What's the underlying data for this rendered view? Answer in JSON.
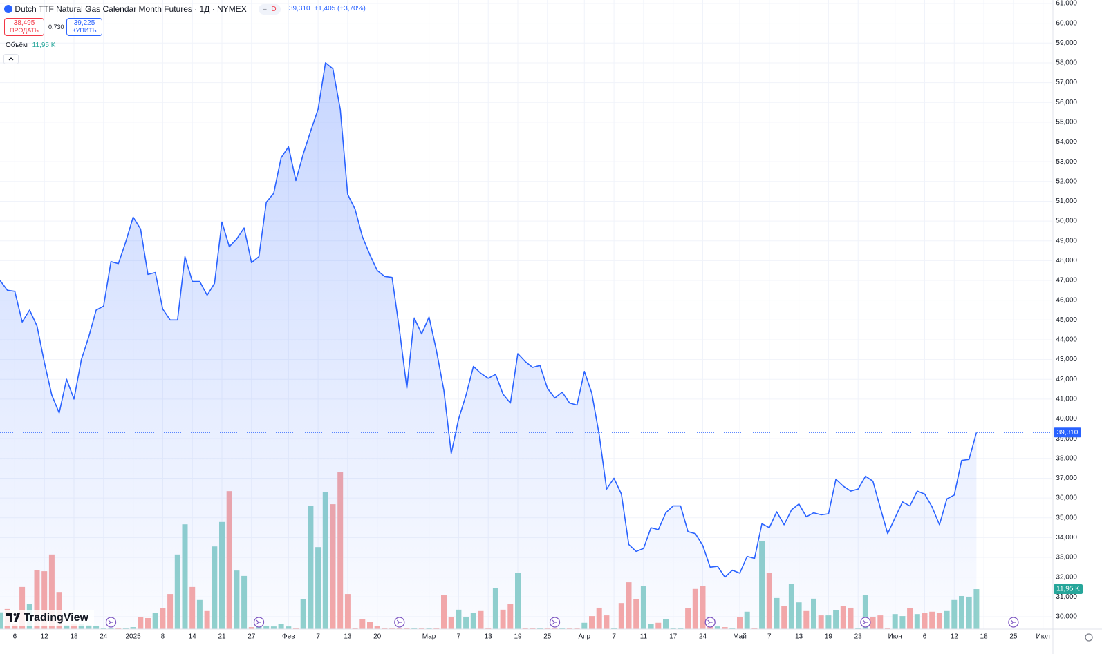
{
  "chart_data": {
    "type": "area",
    "title": "Dutch TTF Natural Gas Calendar Month Futures · 1Д · NYMEX",
    "badge": "D",
    "price_label": "39,310",
    "change_label": "+1,405 (+3,70%)",
    "sell": {
      "price": "38,495",
      "label": "ПРОДАТЬ"
    },
    "spread": "0.730",
    "buy": {
      "price": "39,225",
      "label": "КУПИТЬ"
    },
    "brand": "TradingView",
    "color": "#2962ff",
    "grid": true,
    "categories": [
      null,
      null,
      "6",
      null,
      null,
      null,
      "12",
      null,
      null,
      null,
      "18",
      null,
      null,
      null,
      "24",
      null,
      null,
      null,
      "2025",
      null,
      null,
      null,
      "8",
      null,
      null,
      null,
      "14",
      null,
      null,
      null,
      "21",
      null,
      null,
      null,
      "27",
      null,
      null,
      null,
      null,
      "Фев",
      null,
      null,
      null,
      "7",
      null,
      null,
      null,
      "13",
      null,
      null,
      null,
      "20",
      null,
      null,
      null,
      null,
      null,
      null,
      "Мар",
      null,
      null,
      null,
      "7",
      null,
      null,
      null,
      "13",
      null,
      null,
      null,
      "19",
      null,
      null,
      null,
      "25",
      null,
      null,
      null,
      null,
      "Апр",
      null,
      null,
      null,
      "7",
      null,
      null,
      null,
      "11",
      null,
      null,
      null,
      "17",
      null,
      null,
      null,
      "24",
      null,
      null,
      null,
      null,
      "Май",
      null,
      null,
      null,
      "7",
      null,
      null,
      null,
      "13",
      null,
      null,
      null,
      "19",
      null,
      null,
      null,
      "23",
      null,
      null,
      null,
      null,
      "Июн",
      null,
      null,
      null,
      "6",
      null,
      null,
      null,
      "12",
      null,
      null,
      null,
      "18",
      null,
      null,
      null,
      "25",
      null,
      null,
      null,
      "Июл"
    ],
    "values": [
      47000,
      46500,
      46450,
      44900,
      45500,
      44700,
      42850,
      41200,
      40300,
      42000,
      41000,
      43000,
      44150,
      45500,
      45700,
      47950,
      47850,
      48950,
      50200,
      49600,
      47300,
      47400,
      45550,
      45000,
      45000,
      48200,
      46950,
      46950,
      46250,
      46850,
      49950,
      48700,
      49100,
      49650,
      47900,
      48200,
      50950,
      51400,
      53200,
      53750,
      52050,
      53400,
      54550,
      55650,
      58000,
      57700,
      55650,
      51350,
      50600,
      49200,
      48300,
      47500,
      47200,
      47150,
      44500,
      41550,
      45100,
      44300,
      45150,
      43450,
      41450,
      38250,
      40000,
      41200,
      42650,
      42300,
      42050,
      42250,
      41250,
      40800,
      43300,
      42900,
      42600,
      42700,
      41550,
      41050,
      41350,
      40800,
      40700,
      42400,
      41300,
      39200,
      36450,
      37000,
      36200,
      33650,
      33300,
      33450,
      34500,
      34400,
      35250,
      35600,
      35600,
      34300,
      34200,
      33600,
      32500,
      32550,
      32000,
      32350,
      32200,
      33050,
      32950,
      34700,
      34500,
      35300,
      34650,
      35400,
      35700,
      35050,
      35250,
      35150,
      35200,
      36950,
      36600,
      36350,
      36450,
      37100,
      36850,
      35500,
      34200,
      35000,
      35800,
      35600,
      36350,
      36200,
      35550,
      34650,
      35950,
      36150,
      37900,
      37950,
      39310,
      null,
      null,
      null,
      null,
      null,
      null,
      null,
      null,
      null
    ],
    "volume": {
      "name": "Объём",
      "label": "11,95 K",
      "color_up": "#92d2cc",
      "color_down": "#f7a9a7",
      "values": [
        5,
        6,
        1.5,
        12.6,
        7.6,
        17.7,
        17.3,
        22.3,
        11.1,
        1.2,
        1.6,
        1.6,
        1.2,
        1,
        0.4,
        0.4,
        0.4,
        0.4,
        0.6,
        3.7,
        3.3,
        4.9,
        6.2,
        10.5,
        22.3,
        31.3,
        12.6,
        8.7,
        5.4,
        24.7,
        32,
        41.2,
        17.5,
        15.9,
        0.6,
        1,
        1,
        0.8,
        1.6,
        0.8,
        0.4,
        8.9,
        36.9,
        24.5,
        41,
        37.3,
        46.8,
        10.5,
        0.4,
        2.9,
        2.1,
        1,
        0.4,
        0.2,
        0.2,
        0.4,
        0.4,
        0.2,
        0.4,
        0.4,
        10.1,
        3.7,
        5.8,
        3.7,
        4.9,
        5.4,
        0.4,
        12.2,
        5.8,
        7.6,
        16.9,
        0.4,
        0.4,
        0.4,
        0.2,
        0.4,
        0.2,
        0.2,
        0.2,
        1.9,
        3.9,
        6.4,
        4.1,
        0.4,
        7.8,
        14,
        8.9,
        12.8,
        1.6,
        1.9,
        2.9,
        0.4,
        0.4,
        6.2,
        12,
        12.8,
        2.9,
        0.8,
        0.6,
        0.4,
        3.7,
        5.2,
        0.4,
        26.2,
        16.7,
        9.3,
        7,
        13.4,
        8,
        5.4,
        9.1,
        4.1,
        4.1,
        5.6,
        7,
        6.4,
        0.4,
        10.1,
        3.7,
        4.1,
        0.4,
        4.5,
        3.9,
        6.2,
        4.5,
        4.9,
        5.2,
        4.9,
        5.4,
        8.7,
        9.9,
        9.7,
        11.95,
        null,
        null,
        null,
        null,
        null,
        null,
        null,
        null,
        null
      ]
    },
    "ylim": [
      29370,
      61175
    ],
    "yticks": [
      {
        "value": 30000,
        "label": "30,000"
      },
      {
        "value": 31000,
        "label": "31,000"
      },
      {
        "value": 32000,
        "label": "32,000"
      },
      {
        "value": 33000,
        "label": "33,000"
      },
      {
        "value": 34000,
        "label": "34,000"
      },
      {
        "value": 35000,
        "label": "35,000"
      },
      {
        "value": 36000,
        "label": "36,000"
      },
      {
        "value": 37000,
        "label": "37,000"
      },
      {
        "value": 38000,
        "label": "38,000"
      },
      {
        "value": 39000,
        "label": "39,000"
      },
      {
        "value": 40000,
        "label": "40,000"
      },
      {
        "value": 41000,
        "label": "41,000"
      },
      {
        "value": 42000,
        "label": "42,000"
      },
      {
        "value": 43000,
        "label": "43,000"
      },
      {
        "value": 44000,
        "label": "44,000"
      },
      {
        "value": 45000,
        "label": "45,000"
      },
      {
        "value": 46000,
        "label": "46,000"
      },
      {
        "value": 47000,
        "label": "47,000"
      },
      {
        "value": 48000,
        "label": "48,000"
      },
      {
        "value": 49000,
        "label": "49,000"
      },
      {
        "value": 50000,
        "label": "50,000"
      },
      {
        "value": 51000,
        "label": "51,000"
      },
      {
        "value": 52000,
        "label": "52,000"
      },
      {
        "value": 53000,
        "label": "53,000"
      },
      {
        "value": 54000,
        "label": "54,000"
      },
      {
        "value": 55000,
        "label": "55,000"
      },
      {
        "value": 56000,
        "label": "56,000"
      },
      {
        "value": 57000,
        "label": "57,000"
      },
      {
        "value": 58000,
        "label": "58,000"
      },
      {
        "value": 59000,
        "label": "59,000"
      },
      {
        "value": 60000,
        "label": "60,000"
      },
      {
        "value": 61000,
        "label": "61,000"
      }
    ]
  }
}
